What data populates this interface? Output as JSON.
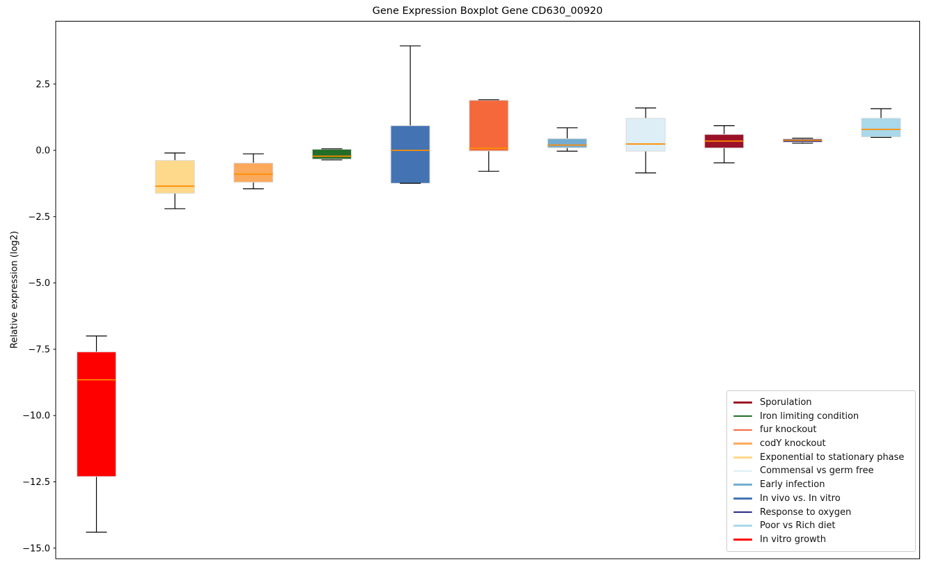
{
  "title": "Gene Expression Boxplot Gene CD630_00920",
  "ylabel": "Relative expression (log2)",
  "chart_data": {
    "type": "boxplot",
    "title": "Gene Expression Boxplot Gene CD630_00920",
    "xlabel": "",
    "ylabel": "Relative expression (log2)",
    "ylim": [
      -15.4,
      4.87
    ],
    "yticks": [
      2.5,
      0.0,
      -2.5,
      -5.0,
      -7.5,
      -10.0,
      -12.5,
      -15.0
    ],
    "ytick_labels": [
      "2.5",
      "0.0",
      "−2.5",
      "−5.0",
      "−7.5",
      "−10.0",
      "−12.5",
      "−15.0"
    ],
    "grid": false,
    "x_tick_labels_visible": false,
    "median_color": "#ff8c00",
    "whisker_color": "#000000",
    "box_edge_color": "#d9d9d9",
    "series": [
      {
        "name": "In vitro growth",
        "color": "#ff0000",
        "whislo": -14.4,
        "q1": -12.3,
        "med": -8.65,
        "q3": -7.6,
        "whishi": -7.0
      },
      {
        "name": "Exponential to stationary phase",
        "color": "#ffd98b",
        "whislo": -2.2,
        "q1": -1.62,
        "med": -1.35,
        "q3": -0.38,
        "whishi": -0.1
      },
      {
        "name": "codY knockout",
        "color": "#fba95c",
        "whislo": -1.45,
        "q1": -1.2,
        "med": -0.9,
        "q3": -0.48,
        "whishi": -0.13
      },
      {
        "name": "Iron limiting condition",
        "color": "#226d27",
        "whislo": -0.36,
        "q1": -0.33,
        "med": -0.22,
        "q3": 0.04,
        "whishi": 0.06
      },
      {
        "name": "In vivo vs. In vitro",
        "color": "#4473b3",
        "whislo": -1.24,
        "q1": -1.24,
        "med": 0.0,
        "q3": 0.93,
        "whishi": 3.94
      },
      {
        "name": "fur knockout",
        "color": "#f4683c",
        "whislo": -0.79,
        "q1": -0.02,
        "med": 0.08,
        "q3": 1.89,
        "whishi": 1.91
      },
      {
        "name": "Early infection",
        "color": "#74add1",
        "whislo": -0.03,
        "q1": 0.1,
        "med": 0.2,
        "q3": 0.44,
        "whishi": 0.85
      },
      {
        "name": "Commensal vs germ free",
        "color": "#ddeef7",
        "whislo": -0.85,
        "q1": -0.03,
        "med": 0.24,
        "q3": 1.21,
        "whishi": 1.6
      },
      {
        "name": "Sporulation",
        "color": "#9b1127",
        "whislo": -0.47,
        "q1": 0.09,
        "med": 0.35,
        "q3": 0.6,
        "whishi": 0.93
      },
      {
        "name": "Response to oxygen",
        "color": "#292c80",
        "whislo": 0.27,
        "q1": 0.31,
        "med": 0.38,
        "q3": 0.43,
        "whishi": 0.46
      },
      {
        "name": "Poor vs Rich diet",
        "color": "#a8d8ea",
        "whislo": 0.49,
        "q1": 0.51,
        "med": 0.79,
        "q3": 1.21,
        "whishi": 1.57
      }
    ],
    "legend": {
      "position": "lower right",
      "entries": [
        {
          "label": "Sporulation",
          "color": "#9b1127"
        },
        {
          "label": "Iron limiting condition",
          "color": "#226d27"
        },
        {
          "label": "fur knockout",
          "color": "#f4683c"
        },
        {
          "label": "codY knockout",
          "color": "#fba95c"
        },
        {
          "label": "Exponential to stationary phase",
          "color": "#ffd98b"
        },
        {
          "label": "Commensal vs germ free",
          "color": "#ddeef7"
        },
        {
          "label": "Early infection",
          "color": "#74add1"
        },
        {
          "label": "In vivo vs. In vitro",
          "color": "#4473b3"
        },
        {
          "label": "Response to oxygen",
          "color": "#292c80"
        },
        {
          "label": "Poor vs Rich diet",
          "color": "#a8d8ea"
        },
        {
          "label": "In vitro growth",
          "color": "#ff0000"
        }
      ]
    }
  }
}
